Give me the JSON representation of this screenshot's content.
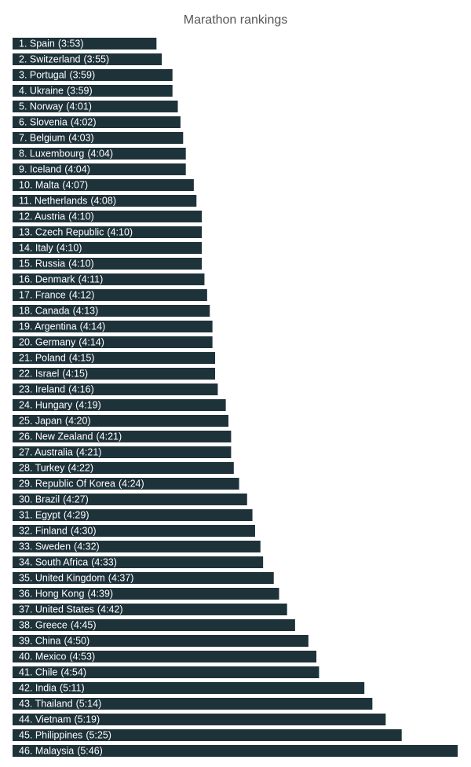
{
  "chart_data": {
    "type": "bar",
    "orientation": "horizontal",
    "title": "Marathon rankings",
    "color": "#1e3239",
    "categories": [
      "1. Spain",
      "2. Switzerland",
      "3. Portugal",
      "4. Ukraine",
      "5. Norway",
      "6. Slovenia",
      "7. Belgium",
      "8. Luxembourg",
      "9. Iceland",
      "10. Malta",
      "11. Netherlands",
      "12. Austria",
      "13. Czech Republic",
      "14. Italy",
      "15. Russia",
      "16. Denmark",
      "17. France",
      "18. Canada",
      "19. Argentina",
      "20. Germany",
      "21. Poland",
      "22. Israel",
      "23. Ireland",
      "24. Hungary",
      "25. Japan",
      "26. New Zealand",
      "27. Australia",
      "28. Turkey",
      "29. Republic Of Korea",
      "30. Brazil",
      "31. Egypt",
      "32. Finland",
      "33. Sweden",
      "34. South Africa",
      "35. United Kingdom",
      "36. Hong Kong",
      "37. United States",
      "38. Greece",
      "39. China",
      "40. Mexico",
      "41. Chile",
      "42. India",
      "43. Thailand",
      "44. Vietnam",
      "45. Philippines",
      "46. Malaysia"
    ],
    "values": [
      233,
      235,
      239,
      239,
      241,
      242,
      243,
      244,
      244,
      247,
      248,
      250,
      250,
      250,
      250,
      251,
      252,
      253,
      254,
      254,
      255,
      255,
      256,
      259,
      260,
      261,
      261,
      262,
      264,
      267,
      269,
      270,
      272,
      273,
      277,
      279,
      282,
      285,
      290,
      293,
      294,
      311,
      314,
      319,
      325,
      346
    ],
    "value_labels": [
      "(3:53)",
      "(3:55)",
      "(3:59)",
      "(3:59)",
      "(4:01)",
      "(4:02)",
      "(4:03)",
      "(4:04)",
      "(4:04)",
      "(4:07)",
      "(4:08)",
      "(4:10)",
      "(4:10)",
      "(4:10)",
      "(4:10)",
      "(4:11)",
      "(4:12)",
      "(4:13)",
      "(4:14)",
      "(4:14)",
      "(4:15)",
      "(4:15)",
      "(4:16)",
      "(4:19)",
      "(4:20)",
      "(4:21)",
      "(4:21)",
      "(4:22)",
      "(4:24)",
      "(4:27)",
      "(4:29)",
      "(4:30)",
      "(4:32)",
      "(4:33)",
      "(4:37)",
      "(4:39)",
      "(4:42)",
      "(4:45)",
      "(4:50)",
      "(4:53)",
      "(4:54)",
      "(5:11)",
      "(5:14)",
      "(5:19)",
      "(5:25)",
      "(5:46)"
    ],
    "xlim": [
      179,
      346
    ]
  }
}
